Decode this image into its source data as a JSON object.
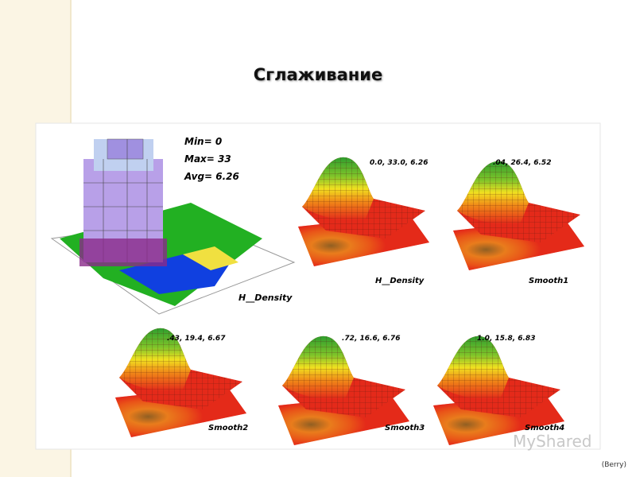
{
  "header": {
    "title": "Сглаживание"
  },
  "histogram": {
    "min": "Min= 0",
    "max": "Max= 33",
    "avg": "Avg= 6.26",
    "label": "H__Density"
  },
  "panels": [
    {
      "stats": "0.0, 33.0, 6.26",
      "label": "H__Density"
    },
    {
      "stats": ".04, 26.4, 6.52",
      "label": "Smooth1"
    },
    {
      "stats": ".43, 19.4, 6.67",
      "label": "Smooth2"
    },
    {
      "stats": ".72, 16.6, 6.76",
      "label": "Smooth3"
    },
    {
      "stats": "1.0, 15.8, 6.83",
      "label": "Smooth4"
    }
  ],
  "watermark": "MyShared",
  "credit": "(Berry)"
}
